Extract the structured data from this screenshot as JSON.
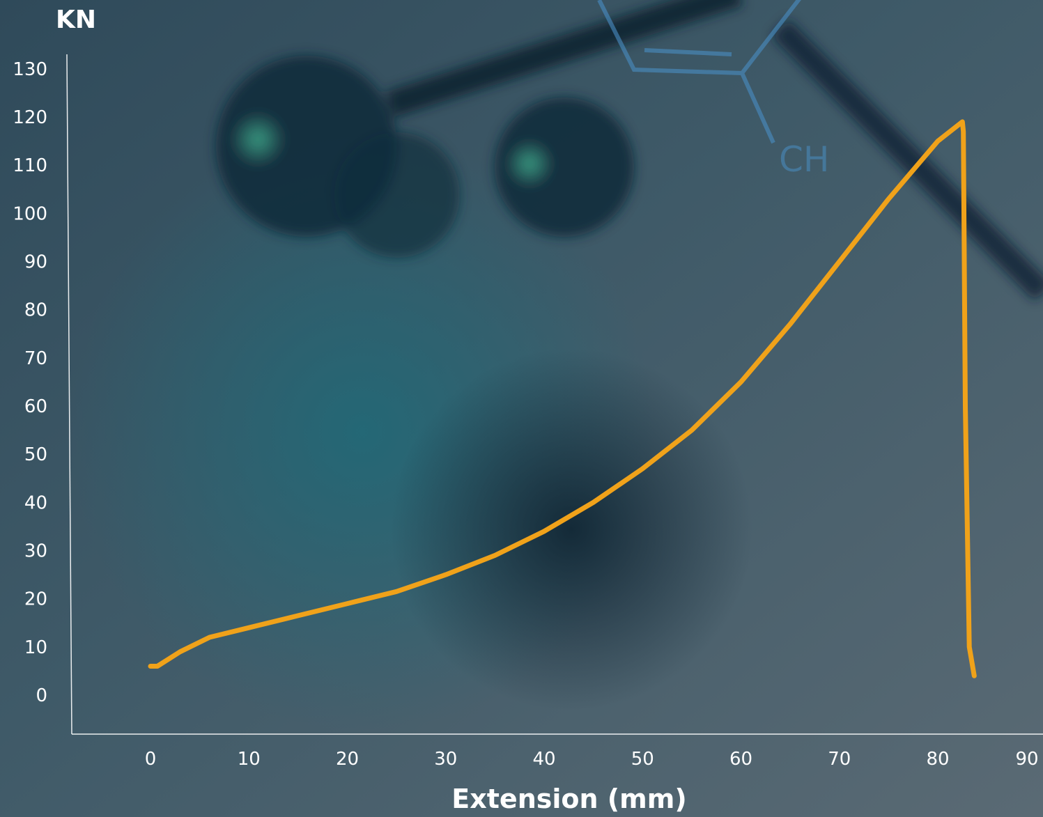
{
  "chart_data": {
    "type": "line",
    "title": "",
    "xlabel": "Extension (mm)",
    "ylabel": "KN",
    "xlim": [
      0,
      90
    ],
    "ylim": [
      0,
      130
    ],
    "x_ticks": [
      0,
      10,
      20,
      30,
      40,
      50,
      60,
      70,
      80,
      90
    ],
    "y_ticks": [
      0,
      10,
      20,
      30,
      40,
      50,
      60,
      70,
      80,
      90,
      100,
      110,
      120,
      130
    ],
    "grid": false,
    "legend": "none",
    "series": [
      {
        "color": "#f0a21a",
        "x": [
          0,
          0.7,
          3,
          6,
          10,
          15,
          20,
          25,
          30,
          35,
          40,
          45,
          50,
          55,
          60,
          65,
          70,
          75,
          80,
          82.5,
          82.6,
          82.8,
          83.2,
          83.7
        ],
        "y": [
          6,
          6,
          9,
          12,
          14,
          16.5,
          19,
          21.5,
          25,
          29,
          34,
          40,
          47,
          55,
          65,
          77,
          90,
          103,
          115,
          119,
          117,
          60,
          10,
          4
        ]
      }
    ]
  },
  "background": {
    "decorative_text": "CH"
  }
}
